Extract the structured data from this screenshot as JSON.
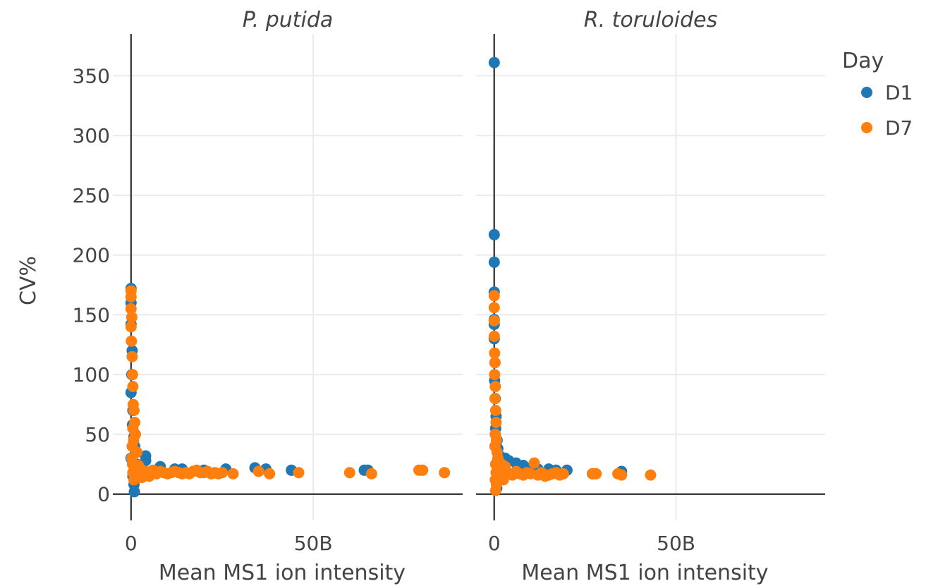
{
  "chart_data": {
    "type": "scatter",
    "ylabel": "CV%",
    "ylim": [
      -22,
      385
    ],
    "yticks": [
      0,
      50,
      100,
      150,
      200,
      250,
      300,
      350
    ],
    "xtick_labels": [
      "0",
      "50B"
    ],
    "x_units_billions": true,
    "legend": {
      "title": "Day",
      "placement": "top-right",
      "entries": [
        {
          "name": "D1",
          "color": "#1f77b4"
        },
        {
          "name": "D7",
          "color": "#ff7f0e"
        }
      ]
    },
    "panels": [
      {
        "title": "P. putida",
        "xlabel": "Mean MS1 ion intensity",
        "xlim": [
          -5,
          91
        ],
        "series": [
          {
            "name": "D1",
            "color": "#1f77b4",
            "points": [
              [
                0,
                172
              ],
              [
                0,
                160
              ],
              [
                0,
                142
              ],
              [
                0.3,
                120
              ],
              [
                0.2,
                100
              ],
              [
                0,
                85
              ],
              [
                0.5,
                70
              ],
              [
                0.4,
                58
              ],
              [
                0.8,
                48
              ],
              [
                1,
                40
              ],
              [
                0,
                30
              ],
              [
                1.5,
                25
              ],
              [
                0.5,
                15
              ],
              [
                0.8,
                8
              ],
              [
                0.9,
                2
              ],
              [
                4,
                32
              ],
              [
                4,
                28
              ],
              [
                8,
                23
              ],
              [
                12,
                21
              ],
              [
                14,
                21
              ],
              [
                20,
                20
              ],
              [
                26,
                21
              ],
              [
                34,
                22
              ],
              [
                37,
                21
              ],
              [
                44,
                20
              ],
              [
                64,
                20
              ],
              [
                65,
                20
              ],
              [
                3,
                20
              ],
              [
                6,
                19
              ],
              [
                2,
                18
              ]
            ]
          },
          {
            "name": "D7",
            "color": "#ff7f0e",
            "points": [
              [
                0,
                170
              ],
              [
                0,
                165
              ],
              [
                0,
                155
              ],
              [
                0.2,
                148
              ],
              [
                0,
                140
              ],
              [
                0.1,
                128
              ],
              [
                0.3,
                115
              ],
              [
                0.4,
                100
              ],
              [
                0.5,
                90
              ],
              [
                0.6,
                75
              ],
              [
                0.8,
                70
              ],
              [
                1,
                60
              ],
              [
                0.5,
                55
              ],
              [
                1.2,
                50
              ],
              [
                0.7,
                45
              ],
              [
                0.3,
                40
              ],
              [
                1.6,
                35
              ],
              [
                0.2,
                30
              ],
              [
                0.4,
                25
              ],
              [
                1,
                22
              ],
              [
                2,
                20
              ],
              [
                0.5,
                18
              ],
              [
                1.5,
                16
              ],
              [
                2,
                14
              ],
              [
                0.8,
                12
              ],
              [
                3,
                20
              ],
              [
                4,
                19
              ],
              [
                5,
                18
              ],
              [
                6,
                20
              ],
              [
                7,
                17
              ],
              [
                8,
                19
              ],
              [
                9,
                18
              ],
              [
                10,
                17
              ],
              [
                11,
                18
              ],
              [
                12,
                19
              ],
              [
                13,
                18
              ],
              [
                14,
                17
              ],
              [
                15,
                18
              ],
              [
                16,
                17
              ],
              [
                17,
                19
              ],
              [
                18,
                20
              ],
              [
                19,
                18
              ],
              [
                20,
                18
              ],
              [
                21,
                19
              ],
              [
                22,
                17
              ],
              [
                23,
                18
              ],
              [
                24,
                17
              ],
              [
                25,
                18
              ],
              [
                28,
                17
              ],
              [
                35,
                19
              ],
              [
                38,
                17
              ],
              [
                46,
                18
              ],
              [
                60,
                18
              ],
              [
                66,
                17
              ],
              [
                79,
                20
              ],
              [
                80,
                20
              ],
              [
                86,
                18
              ],
              [
                3,
                14
              ],
              [
                5,
                15
              ],
              [
                2,
                24
              ]
            ]
          }
        ]
      },
      {
        "title": "R. toruloides",
        "xlabel": "Mean MS1 ion intensity",
        "xlim": [
          -5,
          91
        ],
        "series": [
          {
            "name": "D1",
            "color": "#1f77b4",
            "points": [
              [
                0,
                361
              ],
              [
                0,
                217
              ],
              [
                0,
                194
              ],
              [
                0,
                169
              ],
              [
                0,
                146
              ],
              [
                0,
                142
              ],
              [
                0,
                130
              ],
              [
                0.2,
                110
              ],
              [
                0.1,
                95
              ],
              [
                0.3,
                80
              ],
              [
                0.5,
                65
              ],
              [
                0.4,
                55
              ],
              [
                0.8,
                45
              ],
              [
                1,
                38
              ],
              [
                1.5,
                32
              ],
              [
                3,
                30
              ],
              [
                4,
                28
              ],
              [
                6,
                26
              ],
              [
                8,
                24
              ],
              [
                10,
                22
              ],
              [
                12,
                21
              ],
              [
                15,
                21
              ],
              [
                17,
                20
              ],
              [
                20,
                20
              ],
              [
                27,
                17
              ],
              [
                35,
                19
              ],
              [
                1,
                20
              ],
              [
                2,
                18
              ],
              [
                0.5,
                12
              ],
              [
                0.7,
                5
              ]
            ]
          },
          {
            "name": "D7",
            "color": "#ff7f0e",
            "points": [
              [
                0,
                166
              ],
              [
                0,
                156
              ],
              [
                0,
                145
              ],
              [
                0,
                132
              ],
              [
                0.1,
                118
              ],
              [
                0.2,
                110
              ],
              [
                0.1,
                100
              ],
              [
                0.3,
                90
              ],
              [
                0.2,
                80
              ],
              [
                0.4,
                70
              ],
              [
                0.5,
                60
              ],
              [
                0.3,
                50
              ],
              [
                0.6,
                45
              ],
              [
                0.2,
                40
              ],
              [
                0.8,
                35
              ],
              [
                1,
                30
              ],
              [
                0.4,
                25
              ],
              [
                1.2,
                22
              ],
              [
                0.5,
                18
              ],
              [
                1.5,
                16
              ],
              [
                0.3,
                12
              ],
              [
                0.6,
                8
              ],
              [
                0.4,
                3
              ],
              [
                2,
                20
              ],
              [
                3,
                18
              ],
              [
                4,
                17
              ],
              [
                5,
                16
              ],
              [
                6,
                19
              ],
              [
                7,
                17
              ],
              [
                8,
                16
              ],
              [
                9,
                18
              ],
              [
                10,
                17
              ],
              [
                11,
                26
              ],
              [
                12,
                16
              ],
              [
                13,
                18
              ],
              [
                14,
                15
              ],
              [
                15,
                16
              ],
              [
                16,
                17
              ],
              [
                17,
                18
              ],
              [
                18,
                16
              ],
              [
                19,
                17
              ],
              [
                27,
                17
              ],
              [
                28,
                17
              ],
              [
                34,
                17
              ],
              [
                35,
                16
              ],
              [
                43,
                16
              ],
              [
                2,
                25
              ],
              [
                3,
                23
              ],
              [
                1.8,
                14
              ],
              [
                2.5,
                12
              ]
            ]
          }
        ]
      }
    ]
  }
}
